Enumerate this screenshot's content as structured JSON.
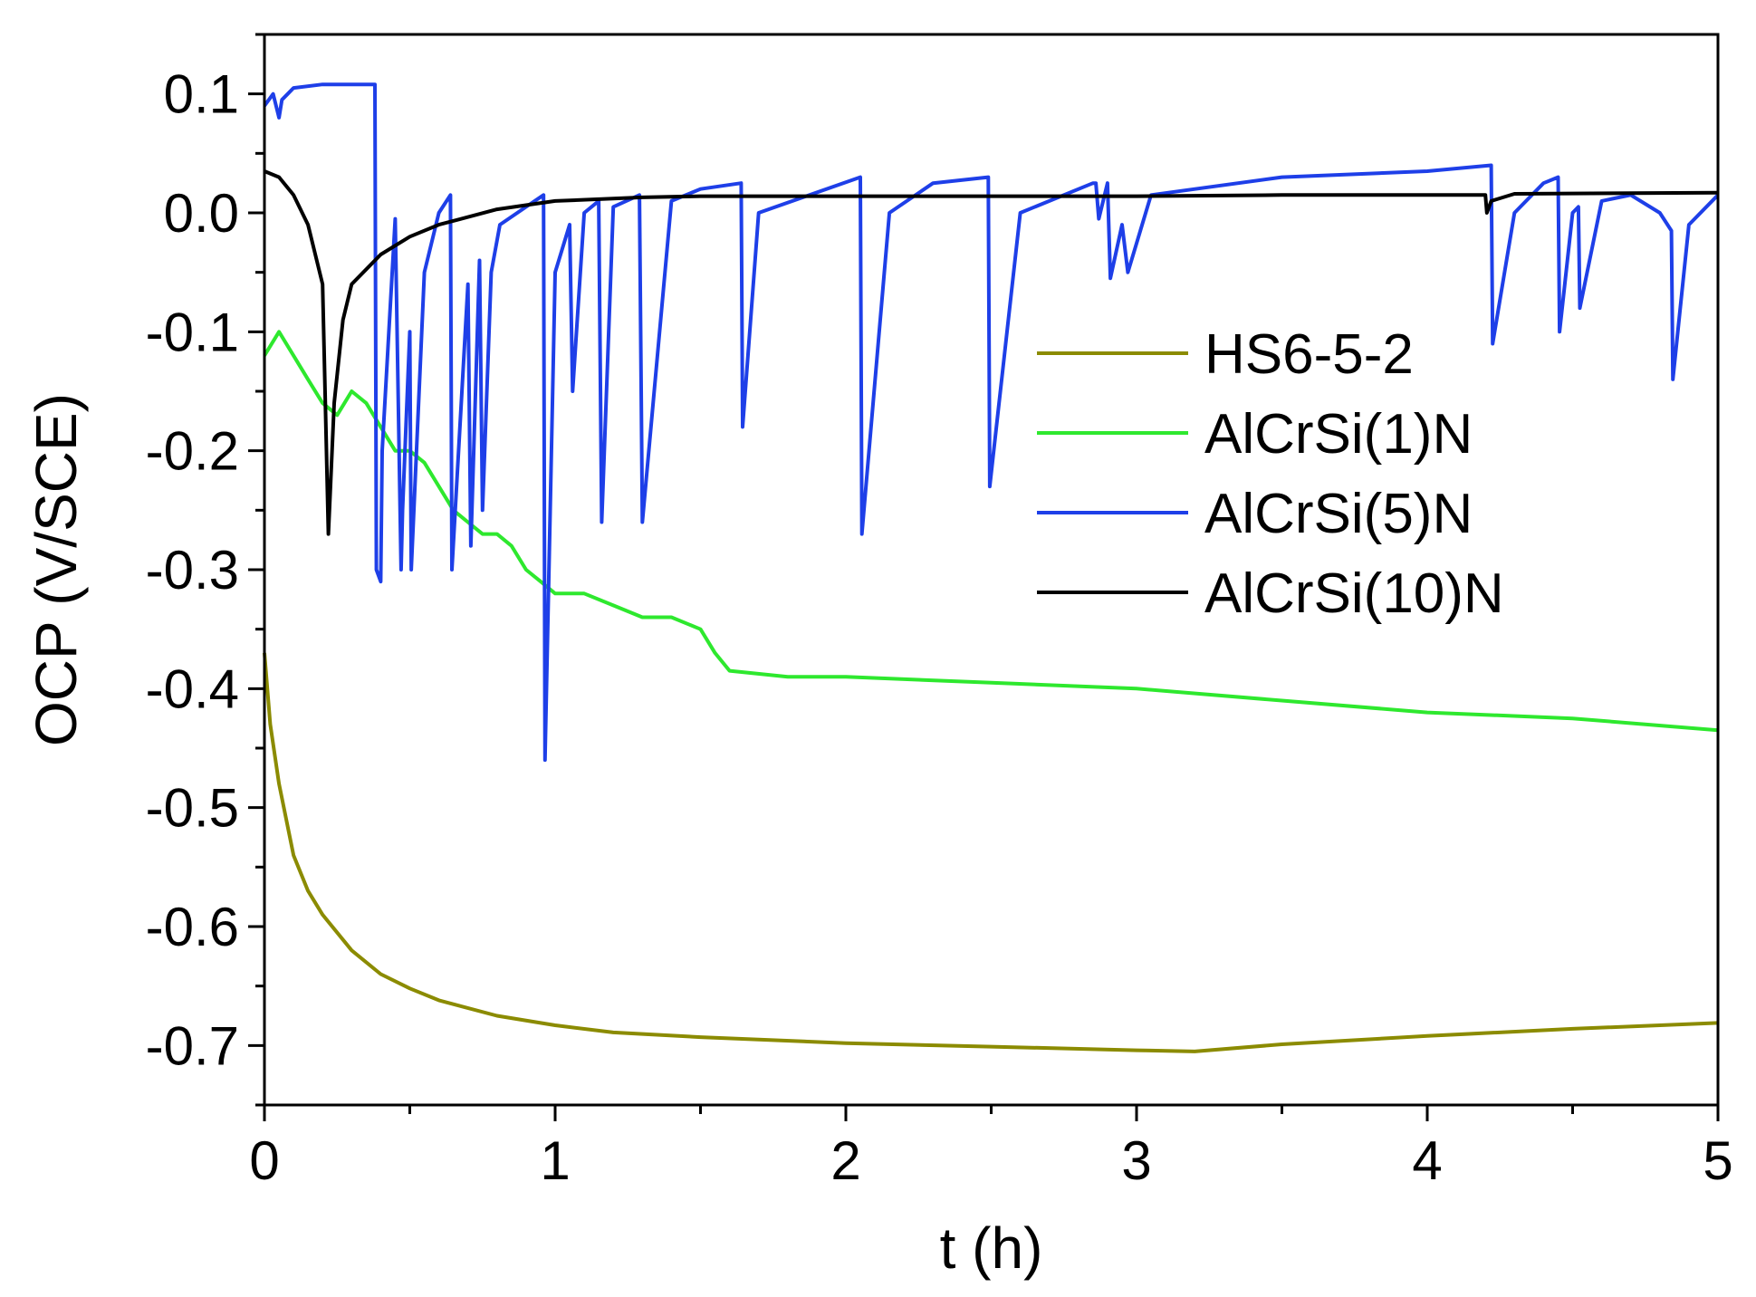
{
  "chart_data": {
    "type": "line",
    "title": "",
    "xlabel": "t (h)",
    "ylabel": "OCP (V/SCE)",
    "xlim": [
      0,
      5
    ],
    "ylim": [
      -0.75,
      0.15
    ],
    "xticks": [
      0,
      1,
      2,
      3,
      4,
      5
    ],
    "xtick_labels": [
      "0",
      "1",
      "2",
      "3",
      "4",
      "5"
    ],
    "yticks": [
      0.1,
      0.0,
      -0.1,
      -0.2,
      -0.3,
      -0.4,
      -0.5,
      -0.6,
      -0.7
    ],
    "ytick_labels": [
      "0.1",
      "0.0",
      "-0.1",
      "-0.2",
      "-0.3",
      "-0.4",
      "-0.5",
      "-0.6",
      "-0.7"
    ],
    "grid": false,
    "legend_position": "right",
    "series": [
      {
        "name": "HS6-5-2",
        "color": "#8B8B00",
        "x": [
          0,
          0.02,
          0.05,
          0.1,
          0.15,
          0.2,
          0.3,
          0.4,
          0.5,
          0.6,
          0.8,
          1.0,
          1.2,
          1.5,
          2.0,
          2.5,
          3.0,
          3.2,
          3.5,
          4.0,
          4.5,
          5.0
        ],
        "y": [
          -0.37,
          -0.43,
          -0.48,
          -0.54,
          -0.57,
          -0.59,
          -0.62,
          -0.64,
          -0.652,
          -0.662,
          -0.675,
          -0.683,
          -0.689,
          -0.693,
          -0.698,
          -0.701,
          -0.704,
          -0.705,
          -0.699,
          -0.692,
          -0.686,
          -0.681
        ]
      },
      {
        "name": "AlCrSi(1)N",
        "color": "#2EE82E",
        "x": [
          0,
          0.05,
          0.1,
          0.15,
          0.2,
          0.25,
          0.3,
          0.35,
          0.4,
          0.45,
          0.5,
          0.55,
          0.6,
          0.65,
          0.7,
          0.75,
          0.8,
          0.85,
          0.9,
          0.95,
          1.0,
          1.1,
          1.2,
          1.3,
          1.4,
          1.5,
          1.55,
          1.6,
          1.8,
          2.0,
          2.5,
          3.0,
          3.5,
          4.0,
          4.5,
          5.0
        ],
        "y": [
          -0.12,
          -0.1,
          -0.12,
          -0.14,
          -0.16,
          -0.17,
          -0.15,
          -0.16,
          -0.18,
          -0.2,
          -0.2,
          -0.21,
          -0.23,
          -0.25,
          -0.26,
          -0.27,
          -0.27,
          -0.28,
          -0.3,
          -0.31,
          -0.32,
          -0.32,
          -0.33,
          -0.34,
          -0.34,
          -0.35,
          -0.37,
          -0.385,
          -0.39,
          -0.39,
          -0.395,
          -0.4,
          -0.41,
          -0.42,
          -0.425,
          -0.435
        ]
      },
      {
        "name": "AlCrSi(5)N",
        "color": "#1E3FE8",
        "x": [
          0,
          0.03,
          0.05,
          0.06,
          0.08,
          0.1,
          0.2,
          0.38,
          0.385,
          0.4,
          0.405,
          0.45,
          0.47,
          0.475,
          0.5,
          0.505,
          0.55,
          0.6,
          0.64,
          0.645,
          0.7,
          0.71,
          0.74,
          0.75,
          0.78,
          0.81,
          0.9,
          0.96,
          0.965,
          1.0,
          1.05,
          1.06,
          1.1,
          1.15,
          1.16,
          1.2,
          1.29,
          1.3,
          1.4,
          1.5,
          1.64,
          1.645,
          1.7,
          2.05,
          2.055,
          2.15,
          2.3,
          2.49,
          2.495,
          2.6,
          2.85,
          2.86,
          2.87,
          2.9,
          2.91,
          2.95,
          2.97,
          3.05,
          3.5,
          4.0,
          4.22,
          4.225,
          4.3,
          4.4,
          4.45,
          4.455,
          4.5,
          4.52,
          4.525,
          4.6,
          4.7,
          4.8,
          4.84,
          4.845,
          4.9,
          5.0
        ],
        "y": [
          0.09,
          0.1,
          0.08,
          0.095,
          0.1,
          0.105,
          0.108,
          0.108,
          -0.3,
          -0.31,
          -0.2,
          -0.005,
          -0.3,
          -0.25,
          -0.1,
          -0.3,
          -0.05,
          0.0,
          0.015,
          -0.3,
          -0.06,
          -0.28,
          -0.04,
          -0.25,
          -0.05,
          -0.01,
          0.005,
          0.015,
          -0.46,
          -0.05,
          -0.01,
          -0.15,
          0.0,
          0.01,
          -0.26,
          0.005,
          0.015,
          -0.26,
          0.01,
          0.02,
          0.025,
          -0.18,
          0.0,
          0.03,
          -0.27,
          0.0,
          0.025,
          0.03,
          -0.23,
          0.0,
          0.025,
          0.025,
          -0.005,
          0.025,
          -0.055,
          -0.01,
          -0.05,
          0.015,
          0.03,
          0.035,
          0.04,
          -0.11,
          0.0,
          0.025,
          0.03,
          -0.1,
          0.0,
          0.005,
          -0.08,
          0.01,
          0.015,
          0.0,
          -0.015,
          -0.14,
          -0.01,
          0.015
        ]
      },
      {
        "name": "AlCrSi(10)N",
        "color": "#000000",
        "x": [
          0,
          0.05,
          0.1,
          0.15,
          0.2,
          0.22,
          0.24,
          0.27,
          0.3,
          0.4,
          0.5,
          0.6,
          0.8,
          1.0,
          1.3,
          1.5,
          2.0,
          2.5,
          3.0,
          3.5,
          4.0,
          4.2,
          4.205,
          4.22,
          4.3,
          5.0
        ],
        "y": [
          0.035,
          0.03,
          0.015,
          -0.01,
          -0.06,
          -0.27,
          -0.16,
          -0.09,
          -0.06,
          -0.035,
          -0.02,
          -0.01,
          0.003,
          0.01,
          0.013,
          0.014,
          0.014,
          0.014,
          0.014,
          0.015,
          0.015,
          0.015,
          0.0,
          0.01,
          0.016,
          0.017
        ]
      }
    ]
  }
}
